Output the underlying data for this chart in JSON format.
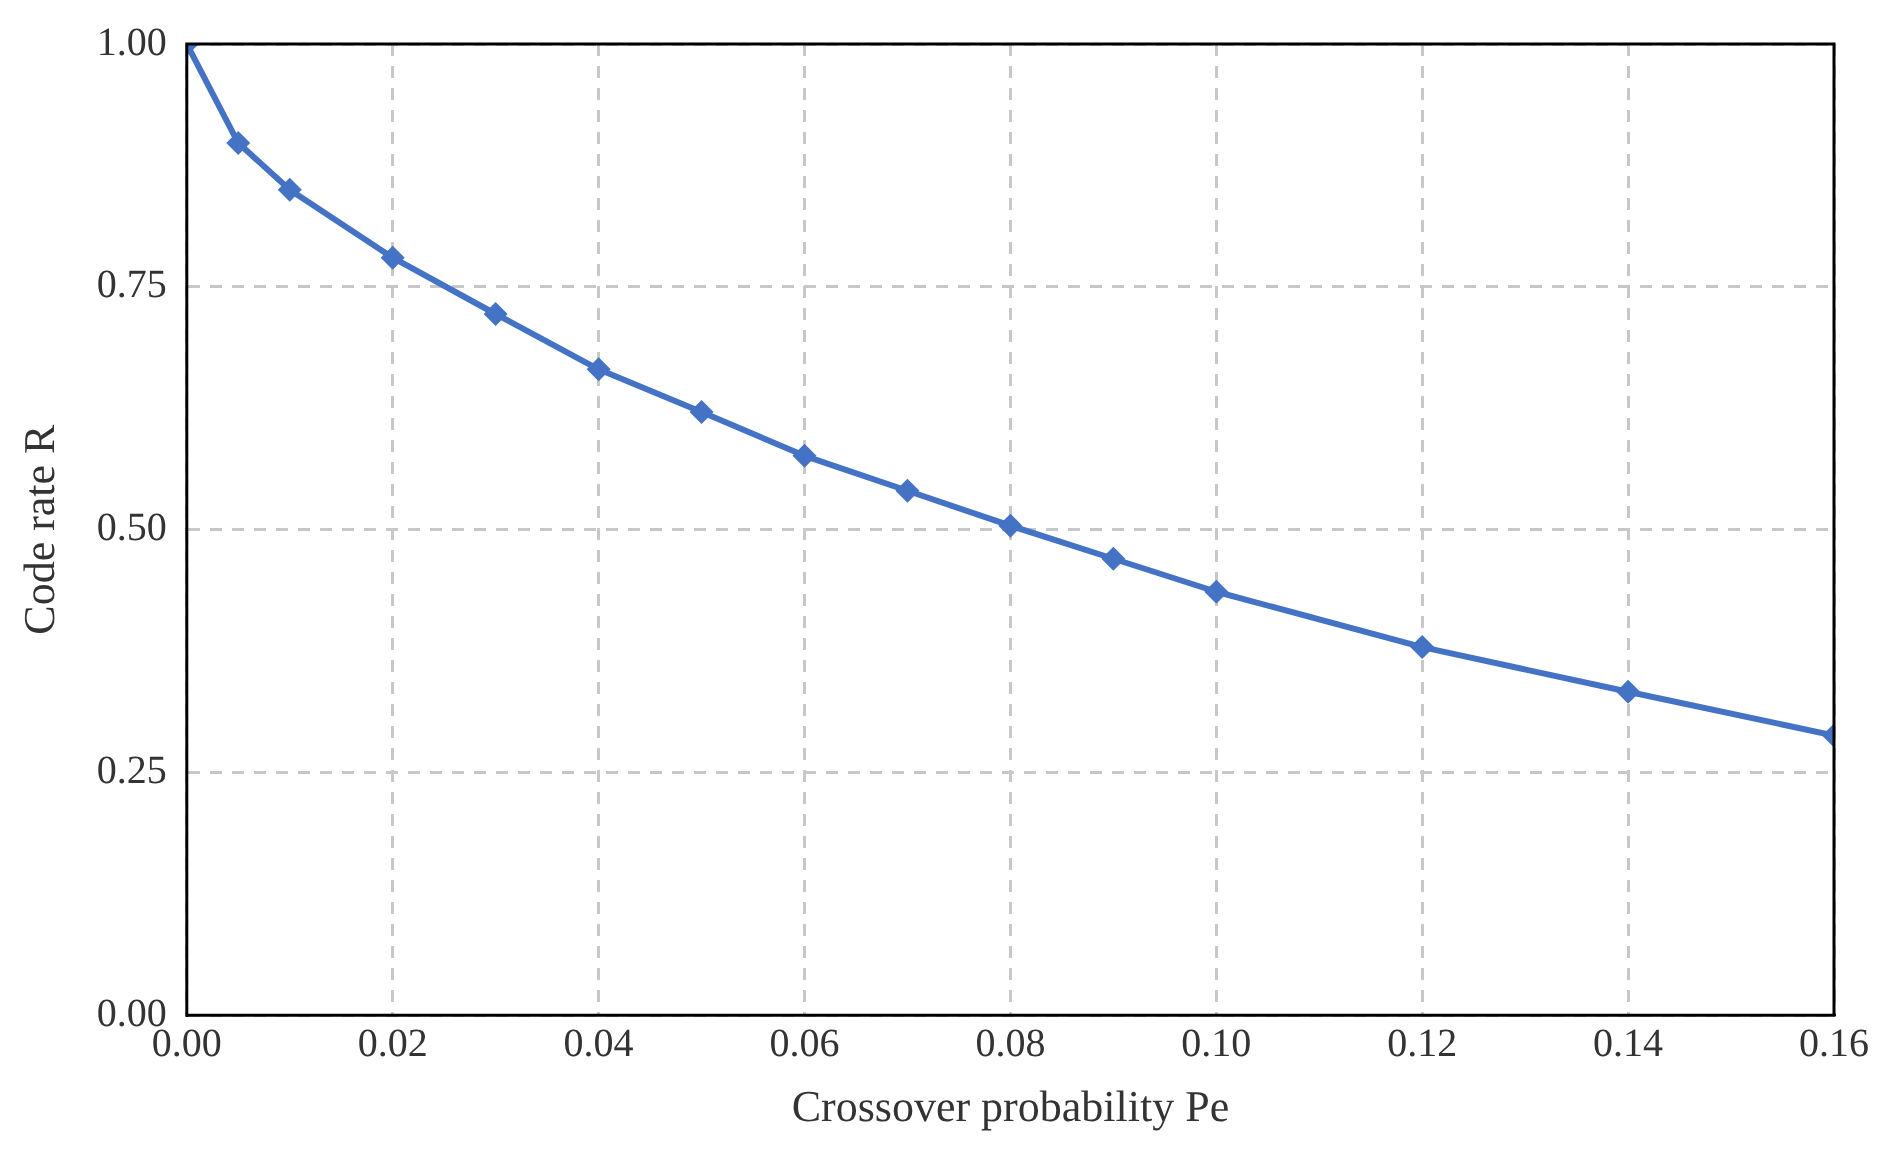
{
  "chart_data": {
    "type": "line",
    "xlabel": "Crossover probability Pe",
    "ylabel": "Code rate R",
    "x": [
      0,
      0.005,
      0.01,
      0.02,
      0.03,
      0.04,
      0.05,
      0.06,
      0.07,
      0.08,
      0.09,
      0.1,
      0.12,
      0.14,
      0.16
    ],
    "series": [
      {
        "color": "#4472c4",
        "values": [
          1.0,
          0.898,
          0.85,
          0.78,
          0.722,
          0.665,
          0.621,
          0.576,
          0.54,
          0.504,
          0.47,
          0.436,
          0.379,
          0.333,
          0.288
        ]
      }
    ],
    "xlim": [
      0,
      0.16
    ],
    "xticks": [
      {
        "value": 0,
        "label": "0.00"
      },
      {
        "value": 0.02,
        "label": "0.02"
      },
      {
        "value": 0.04,
        "label": "0.04"
      },
      {
        "value": 0.06,
        "label": "0.06"
      },
      {
        "value": 0.08,
        "label": "0.08"
      },
      {
        "value": 0.1,
        "label": "0.10"
      },
      {
        "value": 0.12,
        "label": "0.12"
      },
      {
        "value": 0.14,
        "label": "0.14"
      },
      {
        "value": 0.16,
        "label": "0.16"
      }
    ],
    "ylim": [
      0,
      1
    ],
    "yticks": [
      {
        "value": 0,
        "label": "0.00"
      },
      {
        "value": 0.25,
        "label": "0.25"
      },
      {
        "value": 0.5,
        "label": "0.50"
      },
      {
        "value": 0.75,
        "label": "0.75"
      },
      {
        "value": 1,
        "label": "1.00"
      }
    ],
    "grid": true,
    "marker": "diamond",
    "line_style": "solid"
  }
}
